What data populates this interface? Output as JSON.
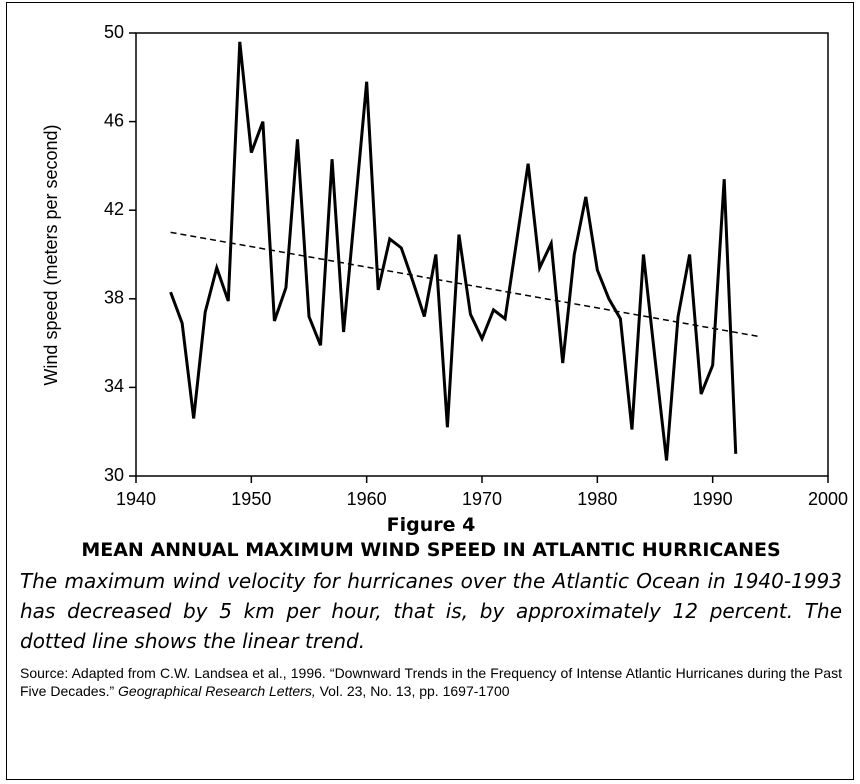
{
  "chart_data": {
    "type": "line",
    "y_label": "Wind speed (meters per second)",
    "x": [
      1943,
      1944,
      1945,
      1946,
      1947,
      1948,
      1949,
      1950,
      1951,
      1952,
      1953,
      1954,
      1955,
      1956,
      1957,
      1958,
      1959,
      1960,
      1961,
      1962,
      1963,
      1964,
      1965,
      1966,
      1967,
      1968,
      1969,
      1970,
      1971,
      1972,
      1973,
      1974,
      1975,
      1976,
      1977,
      1978,
      1979,
      1980,
      1981,
      1982,
      1983,
      1984,
      1985,
      1986,
      1987,
      1988,
      1989,
      1990,
      1991,
      1992
    ],
    "values": [
      38.3,
      36.9,
      32.6,
      37.4,
      39.4,
      37.9,
      49.6,
      44.6,
      46.0,
      37.0,
      38.5,
      45.2,
      37.2,
      35.9,
      44.3,
      36.5,
      42.1,
      47.8,
      38.4,
      40.7,
      40.3,
      38.8,
      37.2,
      40.0,
      32.2,
      40.9,
      37.3,
      36.2,
      37.5,
      37.1,
      40.6,
      44.1,
      39.4,
      40.5,
      35.1,
      40.0,
      42.6,
      39.3,
      38.0,
      37.1,
      32.1,
      40.0,
      35.3,
      30.7,
      37.2,
      40.0,
      33.7,
      35.0,
      43.4,
      31.0
    ],
    "color": "#000000",
    "trend": {
      "x": [
        1943,
        1994
      ],
      "values": [
        41.0,
        36.3
      ],
      "style": "dashed",
      "color": "#000000"
    },
    "xlim": [
      1940,
      2000
    ],
    "xticks": [
      1940,
      1950,
      1960,
      1970,
      1980,
      1990,
      2000
    ],
    "ylim": [
      30,
      50
    ],
    "yticks": [
      30,
      34,
      38,
      42,
      46,
      50
    ],
    "grid": false
  },
  "caption": {
    "figure": "Figure 4",
    "title": "MEAN ANNUAL MAXIMUM WIND SPEED IN ATLANTIC HURRICANES",
    "text": "The maximum wind velocity for hurricanes over the Atlantic Ocean in 1940-1993 has decreased by 5 km per hour, that is, by approximately 12 percent. The dotted line shows the linear trend.",
    "source": [
      "Source: Adapted from C.W. Landsea et al., 1996. “Downward Trends in the Frequency of Intense Atlantic Hurricanes during the Past Five Decades.” ",
      "Geographical Research Letters,",
      " Vol. 23, No. 13, pp. 1697-1700"
    ]
  }
}
